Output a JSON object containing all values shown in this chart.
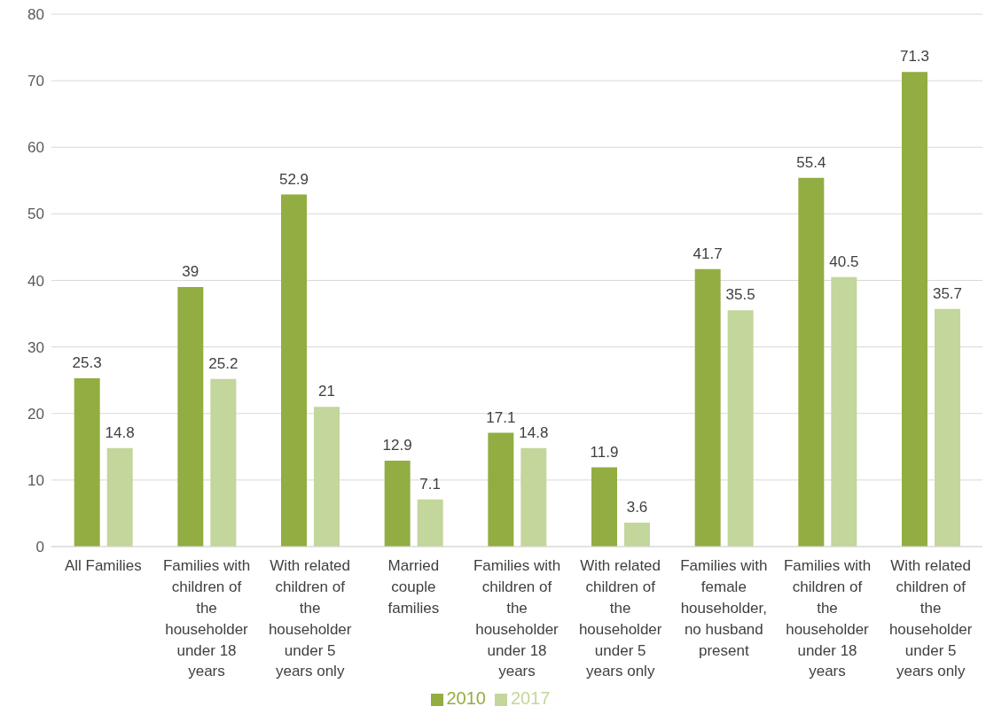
{
  "chart_data": {
    "type": "bar",
    "categories": [
      "All Families",
      "Families with children of the householder under 18 years",
      "With related children of the householder under 5 years only",
      "Married couple families",
      "Families with children of the householder under 18 years",
      "With related children of the householder under 5 years only",
      "Families with female householder, no husband present",
      "Families with children of the householder under 18 years",
      "With related children of the householder under 5 years only"
    ],
    "series": [
      {
        "name": "2010",
        "color": "#92ad41",
        "values": [
          25.3,
          39,
          52.9,
          12.9,
          17.1,
          11.9,
          41.7,
          55.4,
          71.3
        ]
      },
      {
        "name": "2017",
        "color": "#c3d69b",
        "values": [
          14.8,
          25.2,
          21,
          7.1,
          14.8,
          3.6,
          35.5,
          40.5,
          35.7
        ]
      }
    ],
    "ylim": [
      0,
      80
    ],
    "yticks": [
      0,
      10,
      20,
      30,
      40,
      50,
      60,
      70,
      80
    ],
    "grid": "y",
    "legend": "bottom",
    "data_labels": true
  }
}
